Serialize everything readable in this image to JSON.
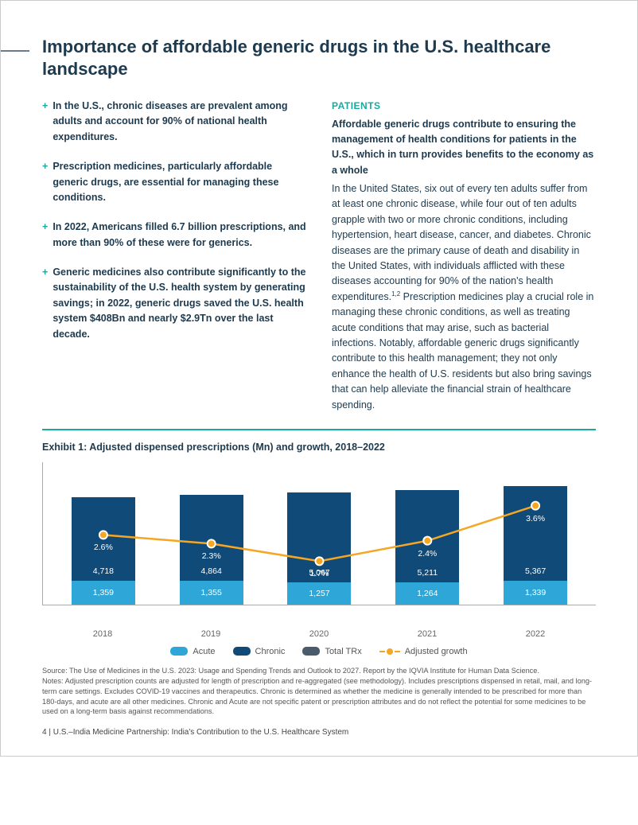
{
  "title": "Importance of affordable generic drugs in the U.S. healthcare landscape",
  "bullets": [
    "In the U.S., chronic diseases are prevalent among adults and account for 90% of national health expenditures.",
    "Prescription medicines, particularly affordable generic drugs, are essential for managing these conditions.",
    "In 2022, Americans filled 6.7 billion prescriptions, and more than 90% of these were for generics.",
    "Generic medicines also contribute significantly to the sustainability of the U.S. health system by generating savings; in 2022, generic drugs saved the U.S. health system $408Bn and nearly $2.9Tn over the last decade."
  ],
  "right": {
    "label": "PATIENTS",
    "lead": "Affordable generic drugs contribute to ensuring the management of health conditions for patients in the U.S., which in turn provides benefits to the economy as a whole",
    "body_a": "In the United States, six out of every ten adults suffer from at least one chronic disease, while four out of ten adults grapple with two or more chronic conditions, including hypertension, heart disease, cancer, and diabetes. Chronic diseases are the primary cause of death and disability in the United States, with individuals afflicted with these diseases accounting for 90% of the nation's health expenditures.",
    "sup": "1,2",
    "body_b": " Prescription medicines play a crucial role in managing these chronic conditions, as well as treating acute conditions that may arise, such as bacterial infections. Notably, affordable generic drugs significantly contribute to this health management; they not only enhance the health of U.S. residents but also bring savings that can help alleviate the financial strain of healthcare spending."
  },
  "exhibit": {
    "title": "Exhibit 1: Adjusted dispensed prescriptions (Mn) and growth, 2018–2022",
    "years": [
      "2018",
      "2019",
      "2020",
      "2021",
      "2022"
    ],
    "totals": [
      "6,077",
      "6,218",
      "6,324",
      "6,475",
      "6,707"
    ],
    "acute_vals": [
      1359,
      1355,
      1257,
      1264,
      1339
    ],
    "acute_labels": [
      "1,359",
      "1,355",
      "1,257",
      "1,264",
      "1,339"
    ],
    "chronic_vals": [
      4718,
      4864,
      5067,
      5211,
      5367
    ],
    "chronic_labels": [
      "4,718",
      "4,864",
      "5,067",
      "5,211",
      "5,367"
    ],
    "growth": [
      2.6,
      2.3,
      1.7,
      2.4,
      3.6
    ],
    "growth_labels": [
      "2.6%",
      "2.3%",
      "1.7%",
      "2.4%",
      "3.6%"
    ],
    "y_max": 7200,
    "colors": {
      "acute": "#2ea7d8",
      "chronic": "#0f4a78",
      "total": "#4a5b6b",
      "growth": "#f5a623",
      "axis": "#aaaaaa",
      "rule": "#1aa9a0"
    },
    "legend": {
      "acute": "Acute",
      "chronic": "Chronic",
      "total": "Total TRx",
      "growth": "Adjusted growth"
    }
  },
  "source": "Source: The Use of Medicines in the U.S. 2023: Usage and Spending Trends and Outlook to 2027. Report by the IQVIA Institute for Human Data Science.",
  "notes": "Notes: Adjusted prescription counts are adjusted for length of prescription and re-aggregated (see methodology). Includes prescriptions dispensed in retail, mail, and long-term care settings. Excludes COVID-19 vaccines and therapeutics. Chronic is determined as whether the medicine is generally intended to be prescribed for more than 180-days, and acute are all other medicines. Chronic and Acute are not specific patent or prescription attributes and do not reflect the potential for some medicines to be used on a long-term basis against recommendations.",
  "footer": "4  |  U.S.–India Medicine Partnership: India's Contribution to the U.S. Healthcare System"
}
